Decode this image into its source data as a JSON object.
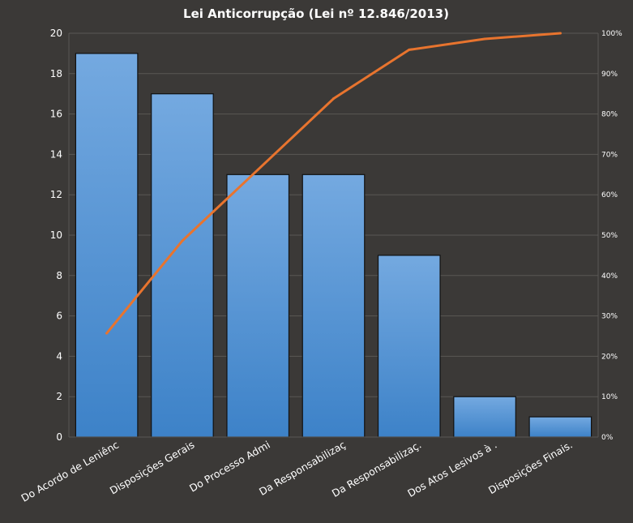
{
  "chart_data": {
    "type": "bar",
    "title": "Lei Anticorrupção (Lei nº 12.846/2013)",
    "xlabel": "",
    "ylabel": "",
    "categories": [
      "Do Acordo de Leniênc",
      "Disposições Gerais",
      "Do Processo Admi",
      "Da Responsabilizaç",
      "Da Responsabilizaç.",
      "Dos Atos Lesivos à .",
      "Disposições Finais."
    ],
    "series": [
      {
        "type": "bar",
        "values": [
          19,
          17,
          13,
          13,
          9,
          2,
          1
        ]
      },
      {
        "type": "line",
        "axis": "secondary",
        "values": [
          25.7,
          48.6,
          66.2,
          83.8,
          95.9,
          98.6,
          100
        ]
      }
    ],
    "ylim": [
      0,
      20
    ],
    "yticks": [
      "0",
      "2",
      "4",
      "6",
      "8",
      "10",
      "12",
      "14",
      "16",
      "18",
      "20"
    ],
    "y2lim": [
      0,
      100
    ],
    "y2ticks": [
      "0%",
      "10%",
      "20%",
      "30%",
      "40%",
      "50%",
      "60%",
      "70%",
      "80%",
      "90%",
      "100%"
    ],
    "grid": true,
    "legend": "none",
    "colors": {
      "background": "#3b3937",
      "bar_top": "#74a9e0",
      "bar_bottom": "#3d82c8",
      "bar_edge": "#111111",
      "line": "#e8742e",
      "grid": "#5a5855",
      "text": "#ffffff"
    }
  }
}
